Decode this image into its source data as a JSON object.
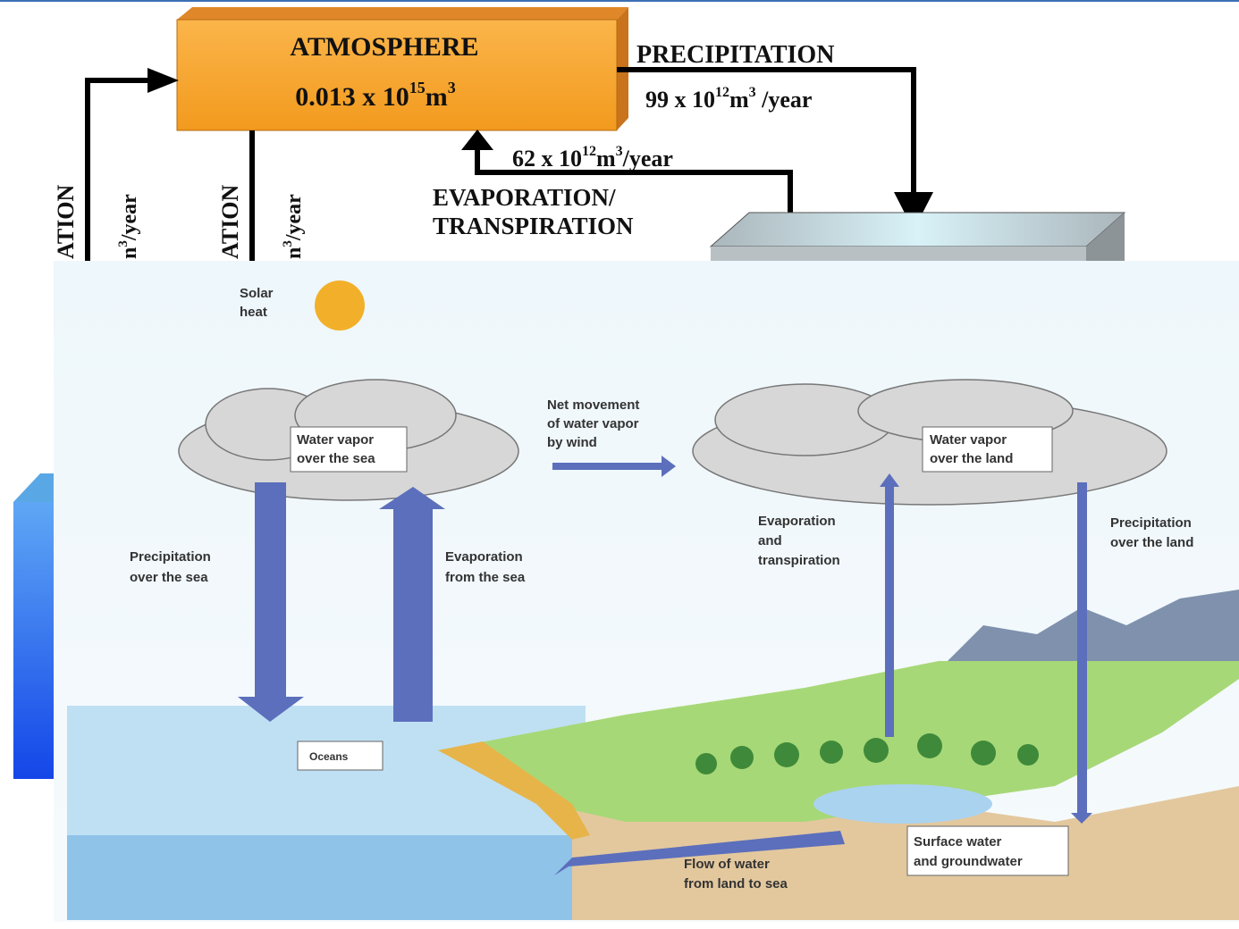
{
  "atmosphere": {
    "title": "ATMOSPHERE",
    "volume": {
      "base": "0.013 x 10",
      "exp": "15",
      "unit": "m",
      "unit_exp": "3"
    }
  },
  "precipitation": {
    "label": "PRECIPITATION",
    "rate": {
      "base": "99 x 10",
      "exp": "12",
      "unit": "m",
      "unit_exp": "3",
      "suffix": " /year"
    }
  },
  "evaporation": {
    "label_lines": [
      "EVAPORATION/",
      "TRANSPIRATION"
    ],
    "rate": {
      "base": "62 x 10",
      "exp": "12",
      "unit": "m",
      "unit_exp": "3",
      "suffix": "/year"
    }
  },
  "left_fragments": [
    {
      "word": "ATION",
      "unit": "n",
      "unit_exp": "3",
      "suffix": "/year"
    },
    {
      "word": "ATION",
      "unit": "n",
      "unit_exp": "3",
      "suffix": "/year"
    }
  ],
  "scene": {
    "solar_heat": [
      "Solar",
      "heat"
    ],
    "vapor_sea": [
      "Water vapor",
      "over the sea"
    ],
    "wind": [
      "Net movement",
      "of water vapor",
      "by wind"
    ],
    "vapor_land": [
      "Water vapor",
      "over the land"
    ],
    "precip_sea": [
      "Precipitation",
      "over the sea"
    ],
    "evap_sea": [
      "Evaporation",
      "from the sea"
    ],
    "evap_land": [
      "Evaporation",
      "and",
      "transpiration"
    ],
    "precip_land": [
      "Precipitation",
      "over the land"
    ],
    "oceans": "Oceans",
    "surface": [
      "Surface water",
      "and groundwater"
    ],
    "flow": [
      "Flow of water",
      "from land to sea"
    ]
  }
}
